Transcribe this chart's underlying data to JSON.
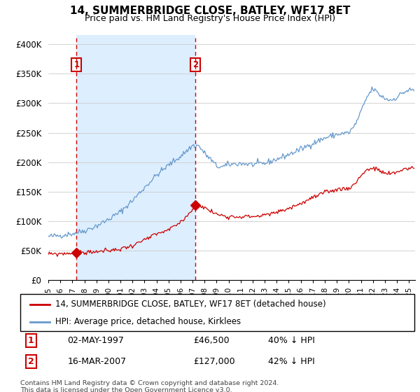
{
  "title": "14, SUMMERBRIDGE CLOSE, BATLEY, WF17 8ET",
  "subtitle": "Price paid vs. HM Land Registry's House Price Index (HPI)",
  "ylabel_ticks": [
    "£0",
    "£50K",
    "£100K",
    "£150K",
    "£200K",
    "£250K",
    "£300K",
    "£350K",
    "£400K"
  ],
  "ytick_values": [
    0,
    50000,
    100000,
    150000,
    200000,
    250000,
    300000,
    350000,
    400000
  ],
  "ylim": [
    0,
    415000
  ],
  "legend_line1": "14, SUMMERBRIDGE CLOSE, BATLEY, WF17 8ET (detached house)",
  "legend_line2": "HPI: Average price, detached house, Kirklees",
  "sale1_date": "02-MAY-1997",
  "sale1_price": "£46,500",
  "sale1_hpi": "40% ↓ HPI",
  "sale2_date": "16-MAR-2007",
  "sale2_price": "£127,000",
  "sale2_hpi": "42% ↓ HPI",
  "footnote1": "Contains HM Land Registry data © Crown copyright and database right 2024.",
  "footnote2": "This data is licensed under the Open Government Licence v3.0.",
  "red_color": "#cc0000",
  "blue_color": "#6699cc",
  "shade_color": "#ddeeff",
  "vline_color": "#cc0000",
  "marker1_x": 1997.35,
  "marker1_y": 46500,
  "marker2_x": 2007.21,
  "marker2_y": 127000,
  "xlim_left": 1995.0,
  "xlim_right": 2025.5
}
